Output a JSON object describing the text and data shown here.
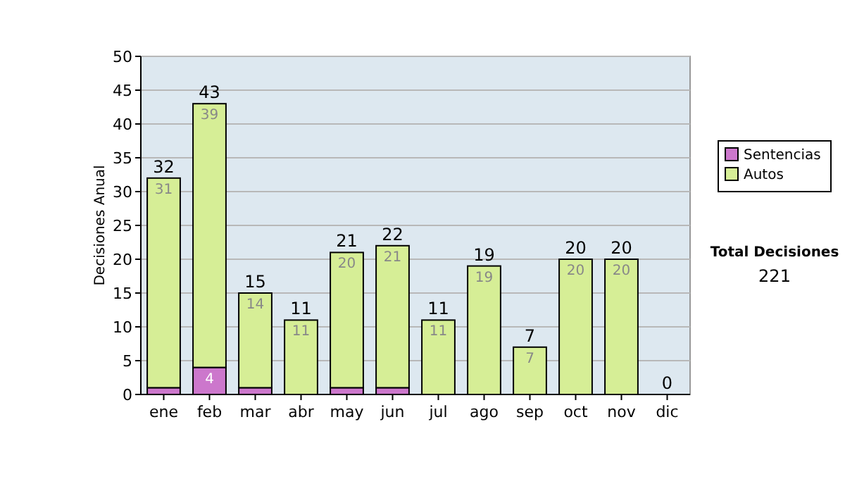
{
  "chart_data": {
    "type": "bar",
    "stacked": true,
    "ylabel": "Decisiones Anual",
    "categories": [
      "ene",
      "feb",
      "mar",
      "abr",
      "may",
      "jun",
      "jul",
      "ago",
      "sep",
      "oct",
      "nov",
      "dic"
    ],
    "series": [
      {
        "name": "Sentencias",
        "color": "#cc77cc",
        "values": [
          1,
          4,
          1,
          0,
          1,
          1,
          0,
          0,
          0,
          0,
          0,
          0
        ],
        "value_labels": [
          null,
          "4",
          null,
          null,
          null,
          null,
          null,
          null,
          null,
          null,
          null,
          null
        ]
      },
      {
        "name": "Autos",
        "color": "#d6ee96",
        "values": [
          31,
          39,
          14,
          11,
          20,
          21,
          11,
          19,
          7,
          20,
          20,
          0
        ],
        "value_labels": [
          "31",
          "39",
          "14",
          "11",
          "20",
          "21",
          "11",
          "19",
          "7",
          "20",
          "20",
          null
        ]
      }
    ],
    "totals": [
      "32",
      "43",
      "15",
      "11",
      "21",
      "22",
      "11",
      "19",
      "7",
      "20",
      "20",
      "0"
    ],
    "ylim": [
      0,
      50
    ],
    "yticks": [
      0,
      5,
      10,
      15,
      20,
      25,
      30,
      35,
      40,
      45,
      50
    ],
    "grid": "y",
    "legend": "right",
    "annotations": [
      "Total Decisiones",
      "221"
    ]
  }
}
